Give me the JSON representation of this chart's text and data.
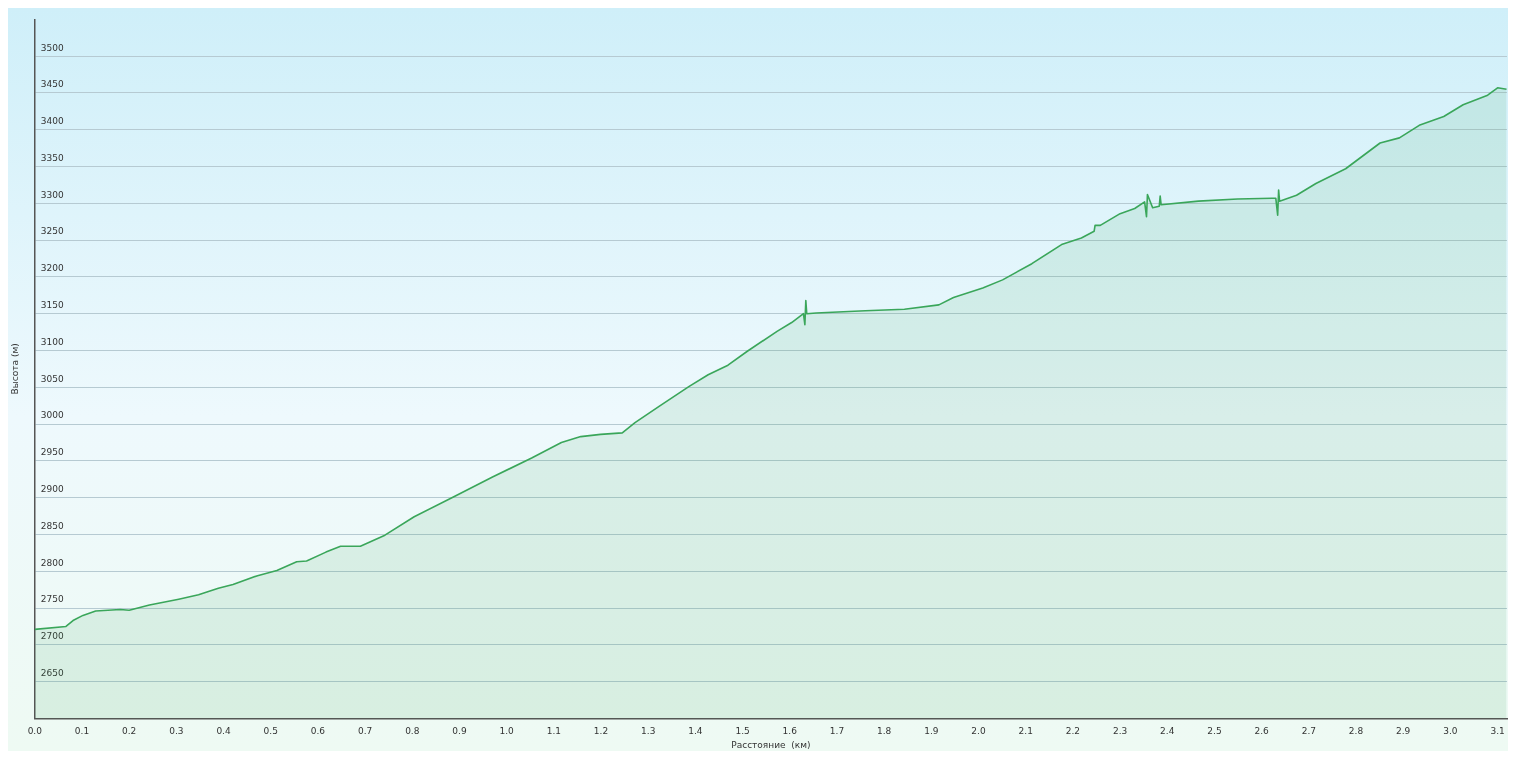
{
  "chart_data": {
    "type": "area",
    "xlabel": "Расстояние  (км)",
    "ylabel": "Высота (м)",
    "x": [
      0,
      0.066,
      0.081,
      0.102,
      0.129,
      0.181,
      0.2,
      0.243,
      0.305,
      0.347,
      0.389,
      0.42,
      0.472,
      0.513,
      0.555,
      0.576,
      0.617,
      0.648,
      0.69,
      0.742,
      0.804,
      0.887,
      0.97,
      1.053,
      1.116,
      1.157,
      1.199,
      1.245,
      1.272,
      1.323,
      1.386,
      1.427,
      1.469,
      1.51,
      1.573,
      1.604,
      1.629,
      1.632,
      1.634,
      1.636,
      1.656,
      1.76,
      1.843,
      1.916,
      1.947,
      2.009,
      2.051,
      2.113,
      2.176,
      2.218,
      2.245,
      2.247,
      2.258,
      2.3,
      2.331,
      2.352,
      2.356,
      2.358,
      2.369,
      2.383,
      2.385,
      2.387,
      2.466,
      2.549,
      2.63,
      2.634,
      2.636,
      2.638,
      2.674,
      2.715,
      2.778,
      2.851,
      2.892,
      2.934,
      2.986,
      3.027,
      3.079,
      3.1,
      3.119
    ],
    "series": [
      {
        "color": "#3aa65a",
        "values": [
          2721,
          2725,
          2733,
          2740,
          2746,
          2748,
          2747,
          2754,
          2762,
          2768,
          2777,
          2782,
          2794,
          2801,
          2813,
          2814,
          2826,
          2834,
          2834,
          2849,
          2874,
          2901,
          2928,
          2954,
          2975,
          2983,
          2986,
          2988,
          3002,
          3024,
          3051,
          3067,
          3080,
          3099,
          3126,
          3138,
          3150,
          3135,
          3168,
          3150,
          3151,
          3154,
          3156,
          3162,
          3172,
          3185,
          3196,
          3218,
          3244,
          3253,
          3262,
          3270,
          3270,
          3286,
          3293,
          3302,
          3282,
          3312,
          3294,
          3296,
          3310,
          3298,
          3303,
          3306,
          3307,
          3284,
          3318,
          3303,
          3311,
          3327,
          3347,
          3382,
          3389,
          3406,
          3418,
          3434,
          3447,
          3457,
          3455
        ]
      }
    ],
    "xlim": [
      0,
      3.12
    ],
    "ylim": [
      2600,
      3550
    ],
    "xticks": [
      {
        "value": 0,
        "label": "0.0"
      },
      {
        "value": 0.1,
        "label": "0.1"
      },
      {
        "value": 0.2,
        "label": "0.2"
      },
      {
        "value": 0.3,
        "label": "0.3"
      },
      {
        "value": 0.4,
        "label": "0.4"
      },
      {
        "value": 0.5,
        "label": "0.5"
      },
      {
        "value": 0.6,
        "label": "0.6"
      },
      {
        "value": 0.7,
        "label": "0.7"
      },
      {
        "value": 0.8,
        "label": "0.8"
      },
      {
        "value": 0.9,
        "label": "0.9"
      },
      {
        "value": 1,
        "label": "1.0"
      },
      {
        "value": 1.1,
        "label": "1.1"
      },
      {
        "value": 1.2,
        "label": "1.2"
      },
      {
        "value": 1.3,
        "label": "1.3"
      },
      {
        "value": 1.4,
        "label": "1.4"
      },
      {
        "value": 1.5,
        "label": "1.5"
      },
      {
        "value": 1.6,
        "label": "1.6"
      },
      {
        "value": 1.7,
        "label": "1.7"
      },
      {
        "value": 1.8,
        "label": "1.8"
      },
      {
        "value": 1.9,
        "label": "1.9"
      },
      {
        "value": 2,
        "label": "2.0"
      },
      {
        "value": 2.1,
        "label": "2.1"
      },
      {
        "value": 2.2,
        "label": "2.2"
      },
      {
        "value": 2.3,
        "label": "2.3"
      },
      {
        "value": 2.4,
        "label": "2.4"
      },
      {
        "value": 2.5,
        "label": "2.5"
      },
      {
        "value": 2.6,
        "label": "2.6"
      },
      {
        "value": 2.7,
        "label": "2.7"
      },
      {
        "value": 2.8,
        "label": "2.8"
      },
      {
        "value": 2.9,
        "label": "2.9"
      },
      {
        "value": 3,
        "label": "3.0"
      },
      {
        "value": 3.1,
        "label": "3.1"
      }
    ],
    "yticks": [
      {
        "value": 2600,
        "label": null
      },
      2650,
      2700,
      2750,
      2800,
      2850,
      2900,
      2950,
      3000,
      3050,
      3100,
      3150,
      3200,
      3250,
      3300,
      3350,
      3400,
      3450,
      3500
    ],
    "grid": "y",
    "legend": false,
    "marker": "none",
    "line_style": "solid"
  }
}
